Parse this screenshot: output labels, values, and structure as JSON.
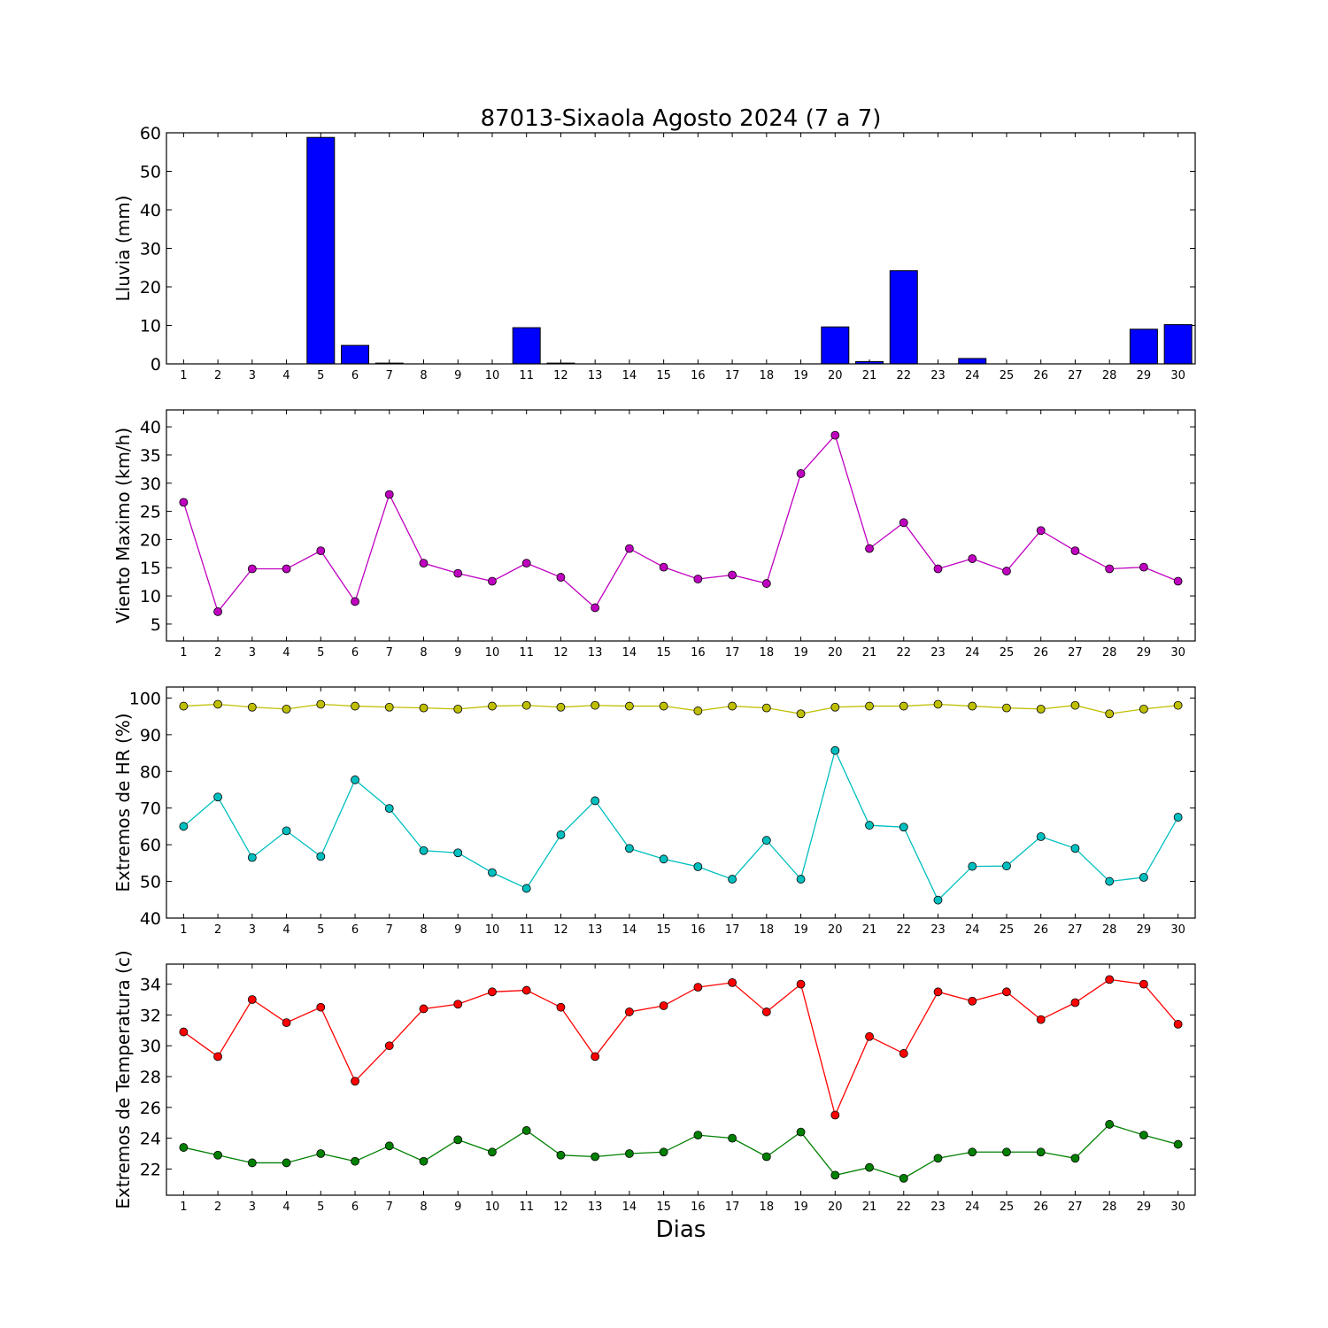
{
  "title": "87013-Sixaola Agosto 2024  (7 a 7)",
  "xlabel": "Dias",
  "days": [
    1,
    2,
    3,
    4,
    5,
    6,
    7,
    8,
    9,
    10,
    11,
    12,
    13,
    14,
    15,
    16,
    17,
    18,
    19,
    20,
    21,
    22,
    23,
    24,
    25,
    26,
    27,
    28,
    29,
    30
  ],
  "chart_data": [
    {
      "type": "bar",
      "ylabel": "Lluvia (mm)",
      "ylim": [
        0,
        60
      ],
      "yticks": [
        0,
        10,
        20,
        30,
        40,
        50,
        60
      ],
      "xlim": [
        0.5,
        30.5
      ],
      "color": "#0000ff",
      "series": [
        {
          "values": [
            0,
            0,
            0,
            0,
            58.8,
            4.8,
            0.2,
            0,
            0,
            0,
            9.4,
            0.2,
            0,
            0,
            0,
            0,
            0,
            0,
            0,
            9.6,
            0.6,
            24.2,
            0,
            1.4,
            0,
            0,
            0,
            0,
            9,
            10.2
          ]
        }
      ]
    },
    {
      "type": "line",
      "ylabel": "Viento Maximo (km/h)",
      "ylim": [
        2,
        43
      ],
      "yticks": [
        5,
        10,
        15,
        20,
        25,
        30,
        35,
        40
      ],
      "xlim": [
        0.5,
        30.5
      ],
      "series": [
        {
          "color": "#bf00bf",
          "values": [
            26.6,
            7.2,
            14.8,
            14.8,
            18.0,
            9.0,
            28.0,
            15.8,
            14.0,
            12.6,
            15.8,
            13.3,
            7.9,
            18.4,
            15.1,
            13.0,
            13.7,
            12.2,
            31.7,
            38.5,
            18.4,
            23.0,
            14.8,
            16.6,
            14.4,
            21.6,
            18.0,
            14.8,
            15.1,
            12.6
          ]
        }
      ]
    },
    {
      "type": "line",
      "ylabel": "Extremos de HR (%)",
      "ylim": [
        40,
        103
      ],
      "yticks": [
        40,
        50,
        60,
        70,
        80,
        90,
        100
      ],
      "xlim": [
        0.5,
        30.5
      ],
      "series": [
        {
          "color": "#bfbf00",
          "values": [
            97.8,
            98.3,
            97.5,
            97.0,
            98.3,
            97.8,
            97.5,
            97.3,
            97.0,
            97.8,
            98.0,
            97.5,
            98.0,
            97.8,
            97.8,
            96.5,
            97.8,
            97.3,
            95.7,
            97.5,
            97.8,
            97.8,
            98.3,
            97.8,
            97.3,
            97.0,
            98.0,
            95.7,
            97.0,
            98.0
          ]
        },
        {
          "color": "#00bfbf",
          "values": [
            65.0,
            73.0,
            56.5,
            63.8,
            56.8,
            77.7,
            69.9,
            58.4,
            57.8,
            52.4,
            48.1,
            62.7,
            72.0,
            59.0,
            56.1,
            54.0,
            50.6,
            61.2,
            50.6,
            85.7,
            65.3,
            64.8,
            44.9,
            54.1,
            54.2,
            62.2,
            59.0,
            50.0,
            51.1,
            67.5
          ]
        }
      ]
    },
    {
      "type": "line",
      "ylabel": "Extremos de Temperatura (c)",
      "ylim": [
        20.3,
        35.3
      ],
      "yticks": [
        22,
        24,
        26,
        28,
        30,
        32,
        34
      ],
      "xlim": [
        0.5,
        30.5
      ],
      "series": [
        {
          "color": "#ff0000",
          "values": [
            30.9,
            29.3,
            33.0,
            31.5,
            32.5,
            27.7,
            30.0,
            32.4,
            32.7,
            33.5,
            33.6,
            32.5,
            29.3,
            32.2,
            32.6,
            33.8,
            34.1,
            32.2,
            34.0,
            25.5,
            30.6,
            29.5,
            33.5,
            32.9,
            33.5,
            31.7,
            32.8,
            34.3,
            34.0,
            31.4
          ]
        },
        {
          "color": "#008000",
          "values": [
            23.4,
            22.9,
            22.4,
            22.4,
            23.0,
            22.5,
            23.5,
            22.5,
            23.9,
            23.1,
            24.5,
            22.9,
            22.8,
            23.0,
            23.1,
            24.2,
            24.0,
            22.8,
            24.4,
            21.6,
            22.1,
            21.4,
            22.7,
            23.1,
            23.1,
            23.1,
            22.7,
            24.9,
            24.2,
            23.6
          ]
        }
      ]
    }
  ]
}
